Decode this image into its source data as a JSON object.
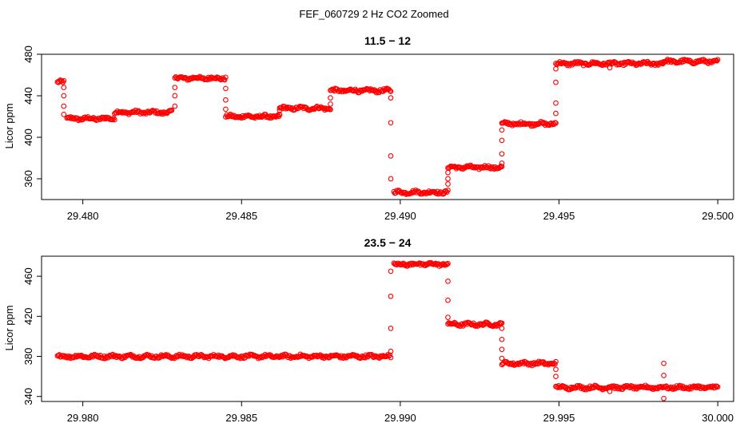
{
  "figure_title": "FEF_060729  2 Hz CO2 Zoomed",
  "colors": {
    "points": "#ff0000",
    "axes": "#000000",
    "background": "#ffffff"
  },
  "chart_data": [
    {
      "type": "scatter",
      "title": "11.5 − 12",
      "xlabel": "",
      "ylabel": "Licor ppm",
      "xlim": [
        29.4787,
        29.5005
      ],
      "ylim": [
        340,
        480
      ],
      "x_ticks": [
        "29.480",
        "29.485",
        "29.490",
        "29.495",
        "29.500"
      ],
      "x_tick_values": [
        29.48,
        29.485,
        29.49,
        29.495,
        29.5
      ],
      "y_ticks": [
        "360",
        "400",
        "440",
        "480"
      ],
      "y_tick_values": [
        360,
        400,
        440,
        480
      ],
      "marker": "open-circle",
      "series": [
        {
          "segments": [
            {
              "x0": 29.4792,
              "x1": 29.4794,
              "y": 453
            },
            {
              "x0": 29.4795,
              "x1": 29.481,
              "y": 418
            },
            {
              "x0": 29.481,
              "x1": 29.4828,
              "y": 424
            },
            {
              "x0": 29.4829,
              "x1": 29.4845,
              "y": 457
            },
            {
              "x0": 29.4845,
              "x1": 29.4862,
              "y": 420
            },
            {
              "x0": 29.4862,
              "x1": 29.4878,
              "y": 428
            },
            {
              "x0": 29.4878,
              "x1": 29.4897,
              "y": 445
            },
            {
              "x0": 29.4898,
              "x1": 29.4915,
              "y": 347
            },
            {
              "x0": 29.4915,
              "x1": 29.4932,
              "y": 371
            },
            {
              "x0": 29.4932,
              "x1": 29.4949,
              "y": 413
            },
            {
              "x0": 29.4949,
              "x1": 29.4983,
              "y": 471
            },
            {
              "x0": 29.4983,
              "x1": 29.5,
              "y": 473
            }
          ],
          "transitions": [
            {
              "x": 29.4794,
              "y": [
                448,
                440,
                430,
                422
              ]
            },
            {
              "x": 29.4829,
              "y": [
                430,
                440,
                448
              ]
            },
            {
              "x": 29.4845,
              "y": [
                447,
                436,
                427
              ]
            },
            {
              "x": 29.4862,
              "y": [
                422,
                426
              ]
            },
            {
              "x": 29.4878,
              "y": [
                432,
                438
              ]
            },
            {
              "x": 29.4897,
              "y": [
                438,
                414,
                382,
                360
              ]
            },
            {
              "x": 29.4915,
              "y": [
                355,
                360,
                366
              ]
            },
            {
              "x": 29.4932,
              "y": [
                375,
                384,
                397,
                407
              ]
            },
            {
              "x": 29.4949,
              "y": [
                423,
                433,
                453,
                466
              ]
            }
          ],
          "outliers": [
            {
              "x": 29.4966,
              "y": 467
            }
          ]
        }
      ]
    },
    {
      "type": "scatter",
      "title": "23.5 − 24",
      "xlabel": "",
      "ylabel": "Licor ppm",
      "xlim": [
        29.9787,
        30.0005
      ],
      "ylim": [
        335,
        480
      ],
      "x_ticks": [
        "29.980",
        "29.985",
        "29.990",
        "29.995",
        "30.000"
      ],
      "x_tick_values": [
        29.98,
        29.985,
        29.99,
        29.995,
        30.0
      ],
      "y_ticks": [
        "340",
        "380",
        "420",
        "460"
      ],
      "y_tick_values": [
        340,
        380,
        420,
        460
      ],
      "marker": "open-circle",
      "series": [
        {
          "segments": [
            {
              "x0": 29.9792,
              "x1": 29.9897,
              "y": 380
            },
            {
              "x0": 29.9898,
              "x1": 29.9915,
              "y": 472
            },
            {
              "x0": 29.9915,
              "x1": 29.9932,
              "y": 412
            },
            {
              "x0": 29.9932,
              "x1": 29.9949,
              "y": 373
            },
            {
              "x0": 29.9949,
              "x1": 30.0,
              "y": 349
            }
          ],
          "transitions": [
            {
              "x": 29.9897,
              "y": [
                385,
                408,
                440,
                465
              ]
            },
            {
              "x": 29.9915,
              "y": [
                455,
                436,
                419
              ]
            },
            {
              "x": 29.9932,
              "y": [
                408,
                397,
                387,
                378
              ]
            },
            {
              "x": 29.9949,
              "y": [
                367,
                360
              ]
            }
          ],
          "outliers": [
            {
              "x": 29.9966,
              "y": 345
            },
            {
              "x": 29.9983,
              "y": 373
            },
            {
              "x": 29.9983,
              "y": 361
            },
            {
              "x": 29.9983,
              "y": 338
            }
          ]
        }
      ]
    }
  ]
}
